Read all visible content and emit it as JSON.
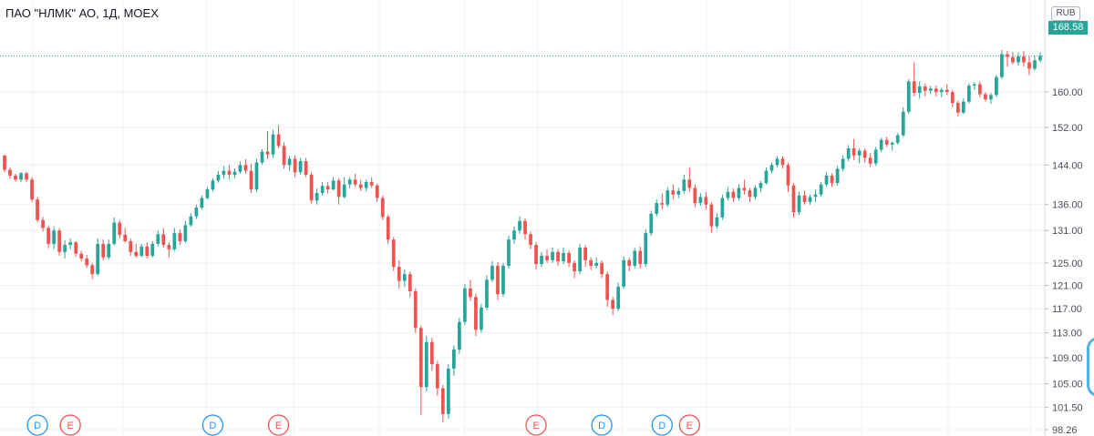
{
  "header": {
    "title": "ПАО \"НЛМК\" АО, 1Д, MOEX"
  },
  "currency": "RUB",
  "last_price": "168.58",
  "colors": {
    "up": "#26a69a",
    "down": "#ef5350",
    "dividend": "#2196f3",
    "earnings": "#ef5350",
    "grid": "#eef0f3"
  },
  "chart_data": {
    "type": "candlestick",
    "y_scale": "log",
    "ylim": [
      98.26,
      178
    ],
    "y_ticks": [
      "160.00",
      "152.00",
      "144.00",
      "136.00",
      "131.00",
      "125.00",
      "121.00",
      "117.00",
      "113.00",
      "109.00",
      "105.00",
      "101.50",
      "98.26"
    ],
    "grid": true,
    "candles": [
      [
        146.0,
        146.1,
        142.5,
        143.0
      ],
      [
        143.0,
        143.5,
        141.2,
        141.8
      ],
      [
        141.8,
        142.2,
        140.6,
        141.0
      ],
      [
        141.0,
        142.5,
        140.5,
        142.3
      ],
      [
        142.3,
        142.6,
        140.5,
        141.0
      ],
      [
        141.0,
        141.5,
        136.5,
        137.0
      ],
      [
        137.0,
        137.5,
        132.5,
        133.0
      ],
      [
        133.0,
        133.6,
        130.8,
        131.5
      ],
      [
        131.5,
        132.0,
        127.7,
        128.5
      ],
      [
        128.5,
        131.8,
        127.5,
        131.0
      ],
      [
        131.0,
        131.5,
        126.3,
        127.0
      ],
      [
        127.0,
        129.2,
        125.8,
        128.3
      ],
      [
        128.3,
        129.5,
        127.5,
        128.8
      ],
      [
        128.8,
        129.0,
        126.1,
        126.7
      ],
      [
        126.7,
        127.2,
        125.3,
        125.8
      ],
      [
        125.8,
        126.5,
        124.1,
        124.6
      ],
      [
        124.6,
        125.0,
        122.1,
        123.0
      ],
      [
        123.0,
        129.5,
        122.8,
        128.5
      ],
      [
        128.5,
        129.3,
        125.5,
        126.0
      ],
      [
        126.0,
        129.3,
        125.6,
        128.5
      ],
      [
        128.5,
        133.5,
        128.2,
        132.5
      ],
      [
        132.5,
        133.0,
        129.5,
        130.2
      ],
      [
        130.2,
        131.5,
        128.7,
        129.0
      ],
      [
        129.0,
        129.5,
        126.3,
        127.0
      ],
      [
        127.0,
        128.5,
        125.9,
        126.3
      ],
      [
        126.3,
        128.5,
        126.0,
        128.0
      ],
      [
        128.0,
        128.8,
        125.8,
        126.3
      ],
      [
        126.3,
        129.0,
        126.0,
        128.5
      ],
      [
        128.5,
        131.0,
        128.0,
        130.3
      ],
      [
        130.3,
        131.5,
        127.8,
        128.3
      ],
      [
        128.3,
        128.8,
        126.0,
        127.5
      ],
      [
        127.5,
        131.5,
        127.2,
        130.5
      ],
      [
        130.5,
        131.2,
        128.3,
        129.0
      ],
      [
        129.0,
        132.8,
        128.6,
        132.0
      ],
      [
        132.0,
        134.3,
        131.7,
        133.7
      ],
      [
        133.7,
        136.0,
        133.2,
        135.4
      ],
      [
        135.4,
        137.8,
        135.0,
        137.3
      ],
      [
        137.3,
        139.5,
        137.0,
        139.0
      ],
      [
        139.0,
        141.3,
        138.6,
        140.8
      ],
      [
        140.8,
        142.8,
        140.4,
        142.0
      ],
      [
        142.0,
        143.8,
        141.2,
        142.8
      ],
      [
        142.8,
        144.0,
        141.0,
        142.0
      ],
      [
        142.0,
        143.3,
        141.3,
        142.6
      ],
      [
        142.6,
        144.8,
        142.2,
        144.0
      ],
      [
        144.0,
        145.2,
        142.2,
        142.8
      ],
      [
        142.8,
        144.3,
        138.3,
        139.0
      ],
      [
        139.0,
        145.3,
        138.5,
        144.5
      ],
      [
        144.5,
        147.3,
        144.1,
        146.8
      ],
      [
        146.8,
        151.2,
        145.2,
        146.2
      ],
      [
        146.2,
        151.5,
        145.5,
        150.5
      ],
      [
        150.5,
        152.5,
        147.5,
        148.0
      ],
      [
        148.0,
        148.8,
        143.2,
        144.0
      ],
      [
        144.0,
        145.8,
        142.8,
        145.3
      ],
      [
        145.3,
        146.0,
        141.5,
        142.5
      ],
      [
        142.5,
        145.5,
        142.0,
        144.8
      ],
      [
        144.8,
        145.5,
        141.5,
        142.0
      ],
      [
        142.0,
        142.5,
        136.2,
        136.8
      ],
      [
        136.8,
        139.2,
        136.0,
        138.3
      ],
      [
        138.3,
        140.5,
        137.8,
        139.7
      ],
      [
        139.7,
        140.5,
        138.2,
        139.0
      ],
      [
        139.0,
        141.5,
        138.8,
        140.8
      ],
      [
        140.8,
        141.3,
        136.0,
        137.5
      ],
      [
        137.5,
        141.5,
        137.2,
        140.0
      ],
      [
        140.0,
        141.5,
        139.2,
        141.0
      ],
      [
        141.0,
        142.2,
        139.5,
        140.0
      ],
      [
        140.0,
        141.0,
        138.7,
        139.3
      ],
      [
        139.3,
        141.0,
        138.6,
        140.5
      ],
      [
        140.5,
        141.5,
        139.3,
        139.8
      ],
      [
        139.8,
        140.2,
        136.5,
        137.3
      ],
      [
        137.3,
        137.8,
        133.0,
        133.6
      ],
      [
        133.6,
        134.0,
        128.5,
        129.3
      ],
      [
        129.3,
        129.8,
        123.6,
        124.3
      ],
      [
        124.3,
        125.5,
        120.5,
        121.8
      ],
      [
        121.8,
        123.8,
        120.8,
        123.0
      ],
      [
        123.0,
        123.5,
        119.0,
        120.0
      ],
      [
        120.0,
        120.5,
        113.0,
        113.8
      ],
      [
        113.8,
        114.2,
        100.3,
        104.5
      ],
      [
        104.5,
        112.5,
        103.8,
        111.5
      ],
      [
        111.5,
        112.2,
        107.0,
        108.0
      ],
      [
        108.0,
        108.5,
        103.2,
        104.3
      ],
      [
        104.3,
        104.8,
        99.3,
        100.5
      ],
      [
        100.5,
        108.0,
        99.8,
        107.3
      ],
      [
        107.3,
        111.0,
        106.2,
        110.3
      ],
      [
        110.3,
        115.5,
        109.6,
        114.8
      ],
      [
        114.8,
        121.2,
        114.3,
        120.5
      ],
      [
        120.5,
        122.0,
        118.3,
        119.0
      ],
      [
        119.0,
        119.6,
        112.5,
        113.5
      ],
      [
        113.5,
        117.8,
        113.0,
        117.2
      ],
      [
        117.2,
        122.8,
        116.8,
        122.0
      ],
      [
        122.0,
        125.3,
        121.6,
        124.5
      ],
      [
        124.5,
        125.2,
        118.5,
        119.5
      ],
      [
        119.5,
        125.0,
        119.0,
        124.5
      ],
      [
        124.5,
        130.0,
        124.0,
        129.3
      ],
      [
        129.3,
        131.8,
        128.5,
        131.0
      ],
      [
        131.0,
        133.7,
        130.4,
        132.8
      ],
      [
        132.8,
        133.3,
        129.3,
        130.3
      ],
      [
        130.3,
        130.8,
        127.5,
        128.3
      ],
      [
        128.3,
        128.8,
        123.8,
        124.8
      ],
      [
        124.8,
        127.0,
        124.3,
        126.3
      ],
      [
        126.3,
        127.5,
        125.0,
        125.5
      ],
      [
        125.5,
        127.8,
        125.0,
        127.0
      ],
      [
        127.0,
        127.5,
        124.5,
        125.3
      ],
      [
        125.3,
        127.8,
        124.8,
        126.8
      ],
      [
        126.8,
        127.3,
        124.3,
        125.0
      ],
      [
        125.0,
        125.5,
        122.3,
        123.5
      ],
      [
        123.5,
        128.5,
        123.0,
        127.8
      ],
      [
        127.8,
        128.3,
        124.3,
        125.5
      ],
      [
        125.5,
        126.0,
        123.7,
        124.5
      ],
      [
        124.5,
        126.0,
        124.0,
        125.0
      ],
      [
        125.0,
        125.5,
        122.3,
        123.0
      ],
      [
        123.0,
        123.5,
        117.3,
        118.5
      ],
      [
        118.5,
        119.0,
        116.0,
        117.0
      ],
      [
        117.0,
        121.5,
        116.6,
        120.8
      ],
      [
        120.8,
        126.2,
        120.4,
        125.5
      ],
      [
        125.5,
        126.0,
        123.5,
        124.5
      ],
      [
        124.5,
        127.8,
        124.0,
        127.2
      ],
      [
        127.2,
        128.0,
        124.0,
        124.8
      ],
      [
        124.8,
        131.2,
        124.3,
        130.5
      ],
      [
        130.5,
        134.8,
        130.0,
        134.2
      ],
      [
        134.2,
        137.0,
        133.7,
        136.3
      ],
      [
        136.3,
        138.2,
        135.0,
        136.0
      ],
      [
        136.0,
        139.5,
        135.5,
        138.8
      ],
      [
        138.8,
        140.0,
        137.0,
        138.0
      ],
      [
        138.0,
        139.3,
        137.3,
        138.7
      ],
      [
        138.7,
        142.0,
        138.2,
        141.0
      ],
      [
        141.0,
        143.5,
        138.5,
        139.3
      ],
      [
        139.3,
        140.0,
        135.5,
        136.3
      ],
      [
        136.3,
        138.3,
        135.8,
        137.5
      ],
      [
        137.5,
        138.5,
        135.0,
        136.0
      ],
      [
        136.0,
        136.5,
        130.5,
        131.8
      ],
      [
        131.8,
        134.3,
        131.3,
        133.5
      ],
      [
        133.5,
        138.0,
        133.0,
        137.3
      ],
      [
        137.3,
        139.5,
        136.8,
        138.5
      ],
      [
        138.5,
        139.2,
        136.5,
        137.3
      ],
      [
        137.3,
        140.0,
        136.8,
        139.3
      ],
      [
        139.3,
        141.0,
        138.0,
        138.8
      ],
      [
        138.8,
        139.3,
        136.5,
        137.5
      ],
      [
        137.5,
        139.8,
        137.0,
        139.3
      ],
      [
        139.3,
        140.7,
        138.5,
        140.3
      ],
      [
        140.3,
        143.5,
        140.0,
        142.8
      ],
      [
        142.8,
        144.5,
        142.3,
        144.0
      ],
      [
        144.0,
        145.8,
        143.5,
        145.3
      ],
      [
        145.3,
        145.8,
        143.3,
        144.0
      ],
      [
        144.0,
        144.5,
        138.5,
        139.8
      ],
      [
        139.8,
        140.3,
        133.5,
        134.5
      ],
      [
        134.5,
        138.5,
        134.0,
        137.8
      ],
      [
        137.8,
        138.8,
        136.0,
        136.5
      ],
      [
        136.5,
        138.0,
        136.0,
        137.5
      ],
      [
        137.5,
        139.0,
        136.5,
        138.0
      ],
      [
        138.0,
        140.5,
        137.5,
        140.0
      ],
      [
        140.0,
        142.5,
        139.5,
        141.8
      ],
      [
        141.8,
        142.3,
        139.5,
        140.3
      ],
      [
        140.3,
        143.8,
        139.8,
        143.2
      ],
      [
        143.2,
        146.0,
        142.7,
        145.3
      ],
      [
        145.3,
        148.2,
        144.8,
        147.5
      ],
      [
        147.5,
        149.5,
        145.0,
        146.0
      ],
      [
        146.0,
        147.5,
        144.3,
        147.0
      ],
      [
        147.0,
        147.5,
        144.5,
        145.5
      ],
      [
        145.5,
        146.5,
        143.6,
        144.3
      ],
      [
        144.3,
        147.8,
        143.8,
        147.2
      ],
      [
        147.2,
        149.8,
        146.8,
        149.3
      ],
      [
        149.3,
        150.0,
        147.8,
        148.3
      ],
      [
        148.3,
        149.0,
        147.0,
        148.7
      ],
      [
        148.7,
        150.8,
        148.3,
        150.3
      ],
      [
        150.3,
        156.5,
        150.0,
        155.5
      ],
      [
        155.5,
        163.0,
        155.0,
        162.5
      ],
      [
        162.5,
        167.0,
        159.0,
        159.8
      ],
      [
        159.8,
        162.5,
        158.5,
        161.3
      ],
      [
        161.3,
        162.0,
        159.0,
        160.3
      ],
      [
        160.3,
        161.5,
        159.5,
        160.8
      ],
      [
        160.8,
        161.5,
        159.0,
        160.0
      ],
      [
        160.0,
        161.0,
        158.8,
        160.5
      ],
      [
        160.5,
        161.8,
        159.3,
        160.0
      ],
      [
        160.0,
        160.5,
        156.5,
        157.5
      ],
      [
        157.5,
        158.0,
        154.5,
        155.3
      ],
      [
        155.3,
        158.5,
        155.0,
        157.8
      ],
      [
        157.8,
        162.0,
        157.3,
        161.5
      ],
      [
        161.5,
        162.3,
        160.5,
        161.8
      ],
      [
        161.8,
        162.5,
        158.8,
        159.5
      ],
      [
        159.5,
        160.0,
        157.8,
        158.3
      ],
      [
        158.3,
        159.8,
        157.3,
        159.3
      ],
      [
        159.3,
        164.0,
        158.8,
        163.5
      ],
      [
        163.5,
        170.0,
        163.0,
        169.0
      ],
      [
        169.0,
        169.8,
        166.0,
        168.3
      ],
      [
        168.3,
        169.5,
        166.5,
        167.0
      ],
      [
        167.0,
        169.5,
        166.2,
        168.5
      ],
      [
        168.5,
        169.8,
        166.0,
        167.0
      ],
      [
        167.0,
        168.5,
        164.0,
        165.5
      ],
      [
        165.5,
        168.5,
        165.0,
        167.5
      ],
      [
        167.5,
        169.5,
        167.0,
        168.58
      ]
    ],
    "events": [
      {
        "type": "dividend",
        "label": "D",
        "index": 6
      },
      {
        "type": "earnings",
        "label": "E",
        "index": 12
      },
      {
        "type": "dividend",
        "label": "D",
        "index": 38
      },
      {
        "type": "earnings",
        "label": "E",
        "index": 50
      },
      {
        "type": "earnings",
        "label": "E",
        "index": 97
      },
      {
        "type": "dividend",
        "label": "D",
        "index": 109
      },
      {
        "type": "dividend",
        "label": "D",
        "index": 120
      },
      {
        "type": "earnings",
        "label": "E",
        "index": 125
      }
    ]
  }
}
